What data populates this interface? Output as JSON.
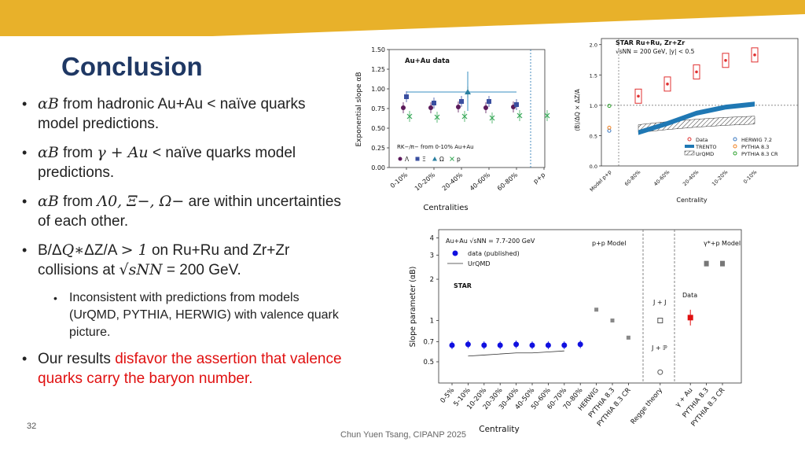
{
  "slide": {
    "title": "Conclusion",
    "bullets": [
      {
        "math": "αB",
        "text": " from hadronic Au+Au < naïve quarks model predictions."
      },
      {
        "math": "αB",
        "text_a": " from ",
        "math2": "γ + Au",
        "text_b": " < naïve quarks model predictions."
      },
      {
        "math": "αB",
        "text_a": " from ",
        "math2": "Λ0, Ξ−, Ω−",
        "text_b": " are within uncertainties of each other."
      },
      {
        "text_a": "B/Δ",
        "math2": "Q∗",
        "text_b": "ΔZ/A ",
        "math3": "> 1",
        "text_c": " on Ru+Ru and Zr+Zr collisions at ",
        "math4": "√sNN",
        "text_d": " = 200 GeV."
      },
      {
        "text_normal": "Our results ",
        "text_red": "disfavor the assertion that valence quarks carry the baryon number."
      }
    ],
    "sub_bullet": "Inconsistent with predictions from models (UrQMD, PYTHIA, HERWIG) with valence quark picture.",
    "slide_number": "32",
    "footer": "Chun Yuen Tsang, CIPANP 2025"
  },
  "colors": {
    "accent_gold": "#e8b12a",
    "title_blue": "#1f3864",
    "red": "#e01010"
  },
  "chart_data": [
    {
      "type": "scatter",
      "panel_title": "Au+Au data",
      "xlabel": "Centralities",
      "ylabel": "Exponential slope αB",
      "categories": [
        "0-10%",
        "10-20%",
        "20-40%",
        "40-60%",
        "60-80%",
        "p+p"
      ],
      "yticks": [
        "0.00",
        "0.25",
        "0.50",
        "0.75",
        "1.00",
        "1.25",
        "1.50"
      ],
      "ylim": [
        0,
        1.5
      ],
      "annotation": "RK−/π− from 0-10% Au+Au",
      "series": [
        {
          "name": "Λ",
          "values": [
            0.76,
            0.76,
            0.77,
            0.76,
            0.77,
            null
          ]
        },
        {
          "name": "Ξ",
          "values": [
            0.9,
            0.82,
            0.84,
            0.84,
            0.8,
            null
          ]
        },
        {
          "name": "Ω",
          "values": [
            null,
            null,
            0.96,
            null,
            null,
            null
          ]
        },
        {
          "name": "p",
          "values": [
            0.65,
            0.64,
            0.65,
            0.63,
            0.66,
            0.66
          ]
        }
      ]
    },
    {
      "type": "scatter",
      "title": "STAR Ru+Ru, Zr+Zr",
      "subtitle": "√sNN = 200 GeV, |y| < 0.5",
      "xlabel": "Centrality",
      "ylabel": "⟨B⟩/ΔQ × ΔZ/A",
      "categories": [
        "Model p+p",
        "60-80%",
        "40-60%",
        "20-40%",
        "10-20%",
        "0-10%"
      ],
      "yticks": [
        "0.0",
        "0.5",
        "1.0",
        "1.5",
        "2.0"
      ],
      "ylim": [
        0,
        2.1
      ],
      "series": [
        {
          "name": "Data",
          "values": [
            null,
            1.15,
            1.35,
            1.55,
            1.74,
            1.83
          ]
        },
        {
          "name": "TRENTO",
          "values": [
            null,
            0.55,
            0.7,
            0.87,
            0.97,
            1.02
          ]
        },
        {
          "name": "UrQMD",
          "values": [
            null,
            0.6,
            0.65,
            0.69,
            0.72,
            0.74
          ]
        },
        {
          "name": "HERWIG 7.2",
          "values": [
            0.58,
            null,
            null,
            null,
            null,
            null
          ]
        },
        {
          "name": "PYTHIA 8.3",
          "values": [
            0.63,
            null,
            null,
            null,
            null,
            null
          ]
        },
        {
          "name": "PYTHIA 8.3 CR",
          "values": [
            0.99,
            null,
            null,
            null,
            null,
            null
          ]
        }
      ]
    },
    {
      "type": "scatter",
      "xlabel": "Centrality",
      "ylabel": "Slope parameter (αB)",
      "legend_header": "Au+Au √sNN = 7.7-200 GeV",
      "legend": [
        "data (published)",
        "UrQMD"
      ],
      "star_label": "STAR",
      "categories": [
        "0-5%",
        "5-10%",
        "10-20%",
        "20-30%",
        "30-40%",
        "40-50%",
        "50-60%",
        "60-70%",
        "70-80%",
        "HERWIG",
        "PYTHIA 8.3",
        "PYTHIA 8.3 CR",
        "Regge theory",
        "γ + Au",
        "PYTHIA 8.3",
        "PYTHIA 8.3 CR"
      ],
      "yticks": [
        "0.5",
        "0.7",
        "1",
        "2",
        "3",
        "4"
      ],
      "scale": "log",
      "section_labels": [
        "p+p Model",
        "γ*+p Model"
      ],
      "annotations": [
        "J + J",
        "J + ℙ",
        "Data"
      ],
      "series": [
        {
          "name": "data (published)",
          "values": [
            0.66,
            0.67,
            0.66,
            0.66,
            0.67,
            0.66,
            0.66,
            0.66,
            0.67
          ]
        },
        {
          "name": "UrQMD",
          "values": [
            null,
            0.55,
            0.56,
            0.57,
            0.58,
            0.58,
            0.59,
            0.6,
            null
          ]
        },
        {
          "name": "p+p Model",
          "values": [
            1.2,
            1.0,
            0.75
          ]
        },
        {
          "name": "J + J",
          "values": [
            1.0
          ]
        },
        {
          "name": "J + ℙ",
          "values": [
            0.42
          ]
        },
        {
          "name": "Data",
          "values": [
            1.05
          ]
        },
        {
          "name": "γ*+p Model",
          "values": [
            2.6,
            2.6
          ]
        }
      ]
    }
  ]
}
